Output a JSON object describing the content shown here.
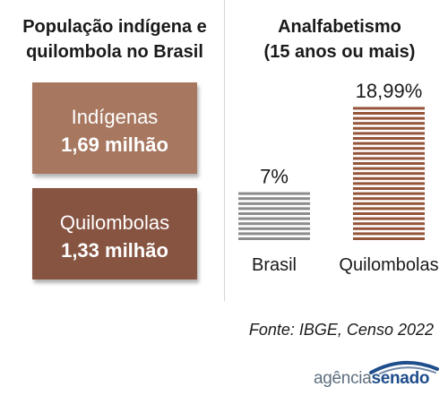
{
  "left_panel": {
    "title_line1": "População indígena e",
    "title_line2": "quilombola no Brasil",
    "boxes": [
      {
        "label": "Indígenas",
        "value": "1,69 milhão",
        "color": "#a77760"
      },
      {
        "label": "Quilombolas",
        "value": "1,33 milhão",
        "color": "#875441"
      }
    ]
  },
  "right_panel": {
    "title_line1": "Analfabetismo",
    "title_line2": "(15 anos ou mais)"
  },
  "chart_data": {
    "type": "bar",
    "title": "Analfabetismo (15 anos ou mais)",
    "categories": [
      "Brasil",
      "Quilombolas"
    ],
    "values": [
      7,
      18.99
    ],
    "value_labels": [
      "7%",
      "18,99%"
    ],
    "colors": [
      "#8c8c8c",
      "#95553a"
    ],
    "unit": "%",
    "ylim": [
      0,
      20
    ],
    "grid": false,
    "legend": "none"
  },
  "source": "Fonte: IBGE, Censo 2022",
  "logo": {
    "part1": "agência",
    "part2": "senado",
    "colors": [
      "#5f6f7f",
      "#1f4e8c"
    ]
  }
}
